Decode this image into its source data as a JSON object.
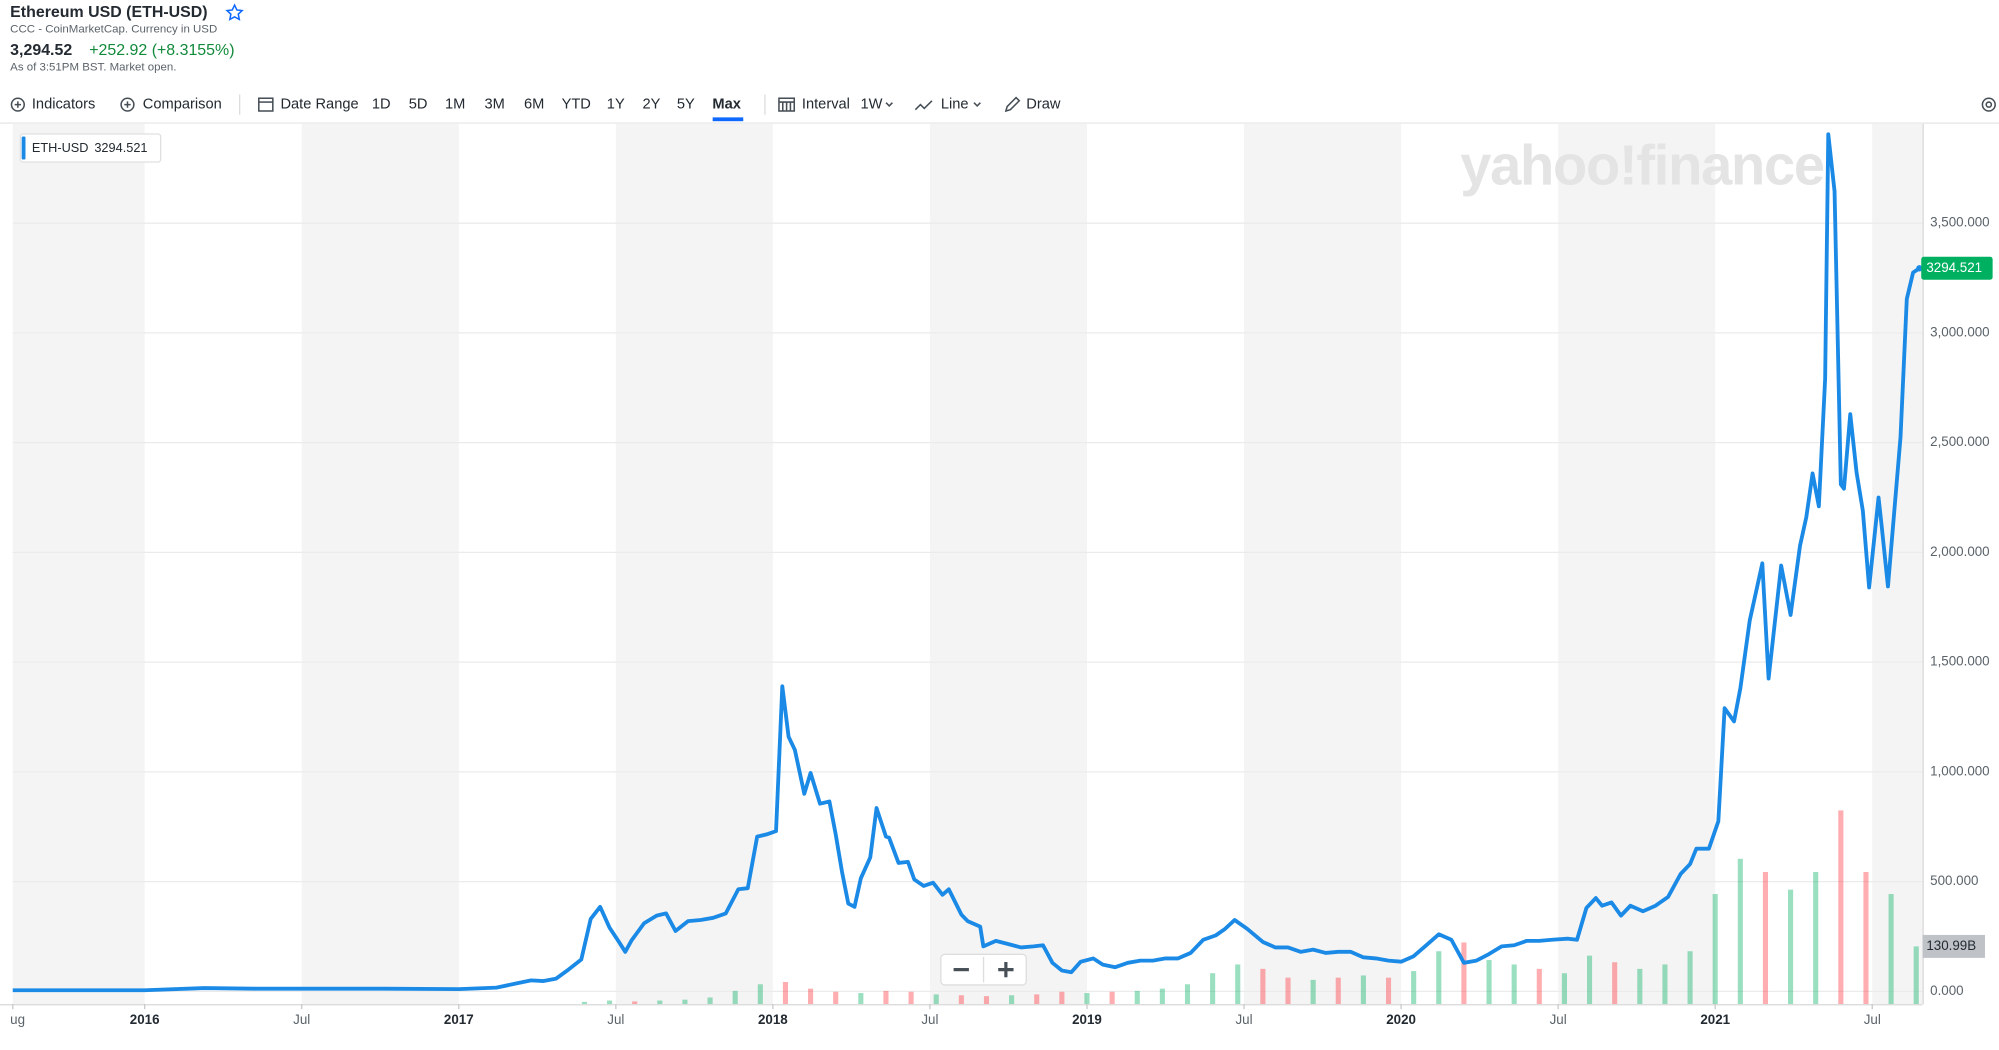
{
  "header": {
    "title": "Ethereum USD (ETH-USD)",
    "subtitle": "CCC - CoinMarketCap. Currency in USD",
    "price": "3,294.52",
    "change": "+252.92 (+8.3155%)",
    "note": "As of 3:51PM BST. Market open."
  },
  "toolbar": {
    "indicators": "Indicators",
    "comparison": "Comparison",
    "date_range": "Date Range",
    "ranges": [
      "1D",
      "5D",
      "1M",
      "3M",
      "6M",
      "YTD",
      "1Y",
      "2Y",
      "5Y",
      "Max"
    ],
    "interval": "Interval",
    "interval_value": "1W",
    "chart_style": "Line",
    "draw": "Draw"
  },
  "watermark": "yahoo!finance",
  "chart_data": [
    {
      "type": "line",
      "x": [
        2015.58,
        2016.0,
        2016.19,
        2016.35,
        2016.51,
        2016.76,
        2017.0,
        2017.12,
        2017.18,
        2017.23,
        2017.27,
        2017.31,
        2017.35,
        2017.39,
        2017.42,
        2017.45,
        2017.48,
        2017.51,
        2017.53,
        2017.55,
        2017.59,
        2017.63,
        2017.66,
        2017.69,
        2017.73,
        2017.77,
        2017.81,
        2017.85,
        2017.89,
        2017.92,
        2017.95,
        2017.98,
        2018.01,
        2018.03,
        2018.05,
        2018.07,
        2018.1,
        2018.12,
        2018.15,
        2018.18,
        2018.2,
        2018.22,
        2018.24,
        2018.26,
        2018.28,
        2018.31,
        2018.33,
        2018.36,
        2018.37,
        2018.4,
        2018.43,
        2018.45,
        2018.48,
        2018.51,
        2018.54,
        2018.56,
        2018.6,
        2018.62,
        2018.66,
        2018.67,
        2018.71,
        2018.75,
        2018.79,
        2018.83,
        2018.86,
        2018.89,
        2018.92,
        2018.95,
        2018.98,
        2019.02,
        2019.05,
        2019.09,
        2019.13,
        2019.17,
        2019.21,
        2019.25,
        2019.29,
        2019.33,
        2019.37,
        2019.41,
        2019.44,
        2019.47,
        2019.51,
        2019.56,
        2019.6,
        2019.64,
        2019.68,
        2019.72,
        2019.76,
        2019.8,
        2019.84,
        2019.88,
        2019.92,
        2019.96,
        2020.0,
        2020.04,
        2020.08,
        2020.12,
        2020.16,
        2020.2,
        2020.24,
        2020.28,
        2020.32,
        2020.36,
        2020.4,
        2020.44,
        2020.48,
        2020.53,
        2020.56,
        2020.59,
        2020.62,
        2020.64,
        2020.67,
        2020.7,
        2020.73,
        2020.77,
        2020.81,
        2020.85,
        2020.89,
        2020.92,
        2020.94,
        2020.98,
        2021.01,
        2021.03,
        2021.06,
        2021.08,
        2021.11,
        2021.15,
        2021.17,
        2021.21,
        2021.24,
        2021.27,
        2021.29,
        2021.31,
        2021.33,
        2021.35,
        2021.36,
        2021.38,
        2021.4,
        2021.41,
        2021.43,
        2021.45,
        2021.47,
        2021.49,
        2021.52,
        2021.53,
        2021.55,
        2021.59,
        2021.61,
        2021.63,
        2021.65
      ],
      "series": [
        {
          "name": "ETH-USD",
          "color": "#1a8ae6",
          "values": [
            5,
            5,
            15,
            12,
            12,
            12,
            10,
            17,
            35,
            50,
            47,
            58,
            100,
            145,
            330,
            385,
            290,
            225,
            180,
            232,
            310,
            345,
            355,
            275,
            320,
            325,
            335,
            355,
            465,
            470,
            705,
            715,
            730,
            1390,
            1160,
            1100,
            900,
            995,
            855,
            865,
            715,
            545,
            400,
            385,
            515,
            610,
            835,
            705,
            700,
            585,
            590,
            510,
            480,
            495,
            440,
            465,
            350,
            320,
            295,
            205,
            230,
            215,
            200,
            205,
            210,
            130,
            95,
            87,
            135,
            150,
            122,
            110,
            130,
            140,
            140,
            150,
            150,
            175,
            235,
            255,
            285,
            325,
            285,
            225,
            200,
            200,
            180,
            190,
            175,
            180,
            180,
            155,
            150,
            140,
            135,
            160,
            210,
            260,
            235,
            130,
            140,
            170,
            205,
            210,
            230,
            230,
            235,
            240,
            235,
            380,
            425,
            390,
            405,
            345,
            390,
            365,
            390,
            430,
            535,
            580,
            650,
            650,
            775,
            1290,
            1230,
            1380,
            1690,
            1950,
            1425,
            1940,
            1715,
            2030,
            2160,
            2360,
            2210,
            2790,
            3905,
            3645,
            2310,
            2290,
            2630,
            2365,
            2190,
            1840,
            2250,
            2120,
            1845,
            2525,
            3155,
            3275,
            3294.521
          ]
        }
      ],
      "xlim": [
        2015.58,
        2021.66
      ],
      "xticks": [
        {
          "value": 2015.58,
          "label": "ug"
        },
        2016,
        {
          "value": 2016.5,
          "label": "Jul"
        },
        2017,
        {
          "value": 2017.5,
          "label": "Jul"
        },
        2018,
        {
          "value": 2018.5,
          "label": "Jul"
        },
        2019,
        {
          "value": 2019.5,
          "label": "Jul"
        },
        2020,
        {
          "value": 2020.5,
          "label": "Jul"
        },
        2021,
        {
          "value": 2021.5,
          "label": "Jul"
        }
      ],
      "ylim": [
        -58,
        3953
      ],
      "yticks": [
        {
          "value": 0,
          "label": "0.000"
        },
        {
          "value": 500,
          "label": "500.000"
        },
        {
          "value": 1000,
          "label": "1,000.000"
        },
        {
          "value": 1500,
          "label": "1,500.000"
        },
        {
          "value": 2000,
          "label": "2,000.000"
        },
        {
          "value": 2500,
          "label": "2,500.000"
        },
        {
          "value": 3000,
          "label": "3,000.000"
        },
        {
          "value": 3500,
          "label": "3,500.000"
        }
      ],
      "grid": true
    },
    {
      "type": "bar",
      "x": [
        2017.4,
        2017.48,
        2017.56,
        2017.64,
        2017.72,
        2017.8,
        2017.88,
        2017.96,
        2018.04,
        2018.12,
        2018.2,
        2018.28,
        2018.36,
        2018.44,
        2018.52,
        2018.6,
        2018.68,
        2018.76,
        2018.84,
        2018.92,
        2019.0,
        2019.08,
        2019.16,
        2019.24,
        2019.32,
        2019.4,
        2019.48,
        2019.56,
        2019.64,
        2019.72,
        2019.8,
        2019.88,
        2019.96,
        2020.04,
        2020.12,
        2020.2,
        2020.28,
        2020.36,
        2020.44,
        2020.52,
        2020.6,
        2020.68,
        2020.76,
        2020.84,
        2020.92,
        2021.0,
        2021.08,
        2021.16,
        2021.24,
        2021.32,
        2021.4,
        2021.48,
        2021.56,
        2021.64
      ],
      "values": [
        5,
        8,
        6,
        8,
        10,
        15,
        30,
        45,
        50,
        35,
        28,
        25,
        30,
        28,
        22,
        20,
        18,
        20,
        22,
        28,
        25,
        28,
        30,
        35,
        45,
        70,
        90,
        80,
        60,
        55,
        60,
        65,
        60,
        75,
        120,
        140,
        100,
        90,
        80,
        70,
        110,
        95,
        80,
        90,
        120,
        250,
        330,
        300,
        260,
        300,
        440,
        300,
        250,
        130.99
      ],
      "colors": [
        "#00b061",
        "#00b061",
        "#ff333a",
        "#00b061",
        "#00b061",
        "#00b061",
        "#00b061",
        "#00b061",
        "#ff333a",
        "#ff333a",
        "#ff333a",
        "#00b061",
        "#ff333a",
        "#ff333a",
        "#00b061",
        "#ff333a",
        "#ff333a",
        "#00b061",
        "#ff333a",
        "#ff333a",
        "#00b061",
        "#ff333a",
        "#00b061",
        "#00b061",
        "#00b061",
        "#00b061",
        "#00b061",
        "#ff333a",
        "#ff333a",
        "#00b061",
        "#ff333a",
        "#00b061",
        "#ff333a",
        "#00b061",
        "#00b061",
        "#ff333a",
        "#00b061",
        "#00b061",
        "#ff333a",
        "#00b061",
        "#00b061",
        "#ff333a",
        "#00b061",
        "#00b061",
        "#00b061",
        "#00b061",
        "#00b061",
        "#ff333a",
        "#00b061",
        "#00b061",
        "#ff333a",
        "#ff333a",
        "#00b061",
        "#00b061"
      ],
      "current_value": {
        "value": 130.99,
        "label": "130.99B"
      },
      "y2lim": [
        0,
        2000
      ]
    }
  ]
}
